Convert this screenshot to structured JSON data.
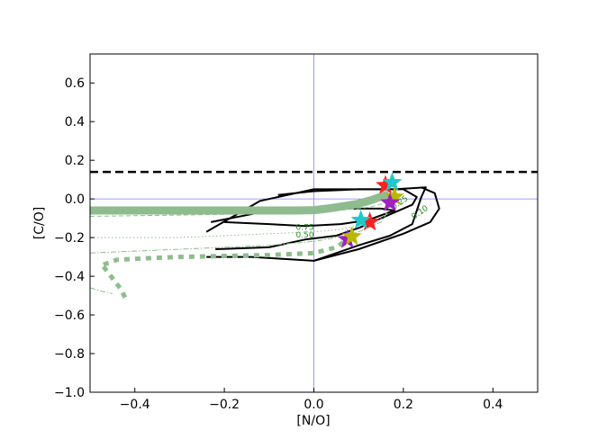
{
  "chart_data": {
    "type": "line",
    "xlabel": "[N/O]",
    "ylabel": "[C/O]",
    "xlim": [
      -0.5,
      0.5
    ],
    "ylim": [
      -1.0,
      0.75
    ],
    "x_ticks": [
      -0.4,
      -0.2,
      0.0,
      0.2,
      0.4
    ],
    "y_ticks": [
      -1.0,
      -0.8,
      -0.6,
      -0.4,
      -0.2,
      0.0,
      0.2,
      0.4,
      0.6
    ],
    "x_tick_labels": [
      "−0.4",
      "−0.2",
      "0.0",
      "0.2",
      "0.4"
    ],
    "y_tick_labels": [
      "−1.0",
      "−0.8",
      "−0.6",
      "−0.4",
      "−0.2",
      "0.0",
      "0.2",
      "0.4",
      "0.6"
    ],
    "grid": false,
    "reference_lines": {
      "vertical_x": 0.0,
      "horizontal_y": 0.0,
      "color": "#8080ff"
    },
    "solar_line": {
      "y": 0.14,
      "style": "dashed",
      "color": "#000000"
    },
    "contours": [
      {
        "color": "#000000",
        "points": [
          [
            -0.23,
            -0.12
          ],
          [
            -0.12,
            -0.07
          ],
          [
            -0.03,
            -0.06
          ],
          [
            0.05,
            -0.05
          ],
          [
            0.15,
            -0.05
          ],
          [
            0.18,
            -0.06
          ],
          [
            0.12,
            -0.11
          ],
          [
            0.06,
            -0.13
          ],
          [
            -0.02,
            -0.14
          ],
          [
            -0.1,
            -0.13
          ],
          [
            -0.2,
            -0.12
          ]
        ]
      },
      {
        "color": "#000000",
        "points": [
          [
            -0.24,
            -0.17
          ],
          [
            -0.12,
            -0.01
          ],
          [
            0.0,
            0.05
          ],
          [
            0.1,
            0.05
          ],
          [
            0.2,
            0.05
          ],
          [
            0.23,
            0.01
          ],
          [
            0.22,
            -0.03
          ],
          [
            0.1,
            -0.15
          ],
          [
            0.05,
            -0.19
          ],
          [
            -0.02,
            -0.21
          ],
          [
            -0.1,
            -0.25
          ],
          [
            -0.22,
            -0.26
          ]
        ]
      },
      {
        "color": "#000000",
        "points": [
          [
            -0.24,
            -0.3
          ],
          [
            -0.14,
            -0.3
          ],
          [
            0.0,
            -0.32
          ],
          [
            0.05,
            -0.28
          ],
          [
            0.1,
            -0.24
          ],
          [
            0.17,
            -0.19
          ],
          [
            0.22,
            -0.13
          ],
          [
            0.24,
            0.01
          ],
          [
            0.25,
            0.06
          ],
          [
            0.18,
            0.05
          ],
          [
            0.1,
            0.05
          ],
          [
            0.0,
            0.04
          ],
          [
            -0.08,
            0.02
          ]
        ]
      },
      {
        "color": "#000000",
        "points": [
          [
            0.0,
            -0.32
          ],
          [
            0.1,
            -0.26
          ],
          [
            0.2,
            -0.18
          ],
          [
            0.26,
            -0.12
          ],
          [
            0.28,
            -0.05
          ],
          [
            0.27,
            0.03
          ],
          [
            0.24,
            0.06
          ]
        ]
      }
    ],
    "contour_labels": [
      {
        "text": "0.75",
        "x": -0.02,
        "y": -0.16,
        "color": "#2a8a2a"
      },
      {
        "text": "0.50",
        "x": -0.02,
        "y": -0.2,
        "color": "#2a8a2a"
      },
      {
        "text": "0.25",
        "x": 0.195,
        "y": -0.03,
        "color": "#2a8a2a"
      },
      {
        "text": "0.10",
        "x": 0.24,
        "y": -0.08,
        "color": "#2a8a2a"
      }
    ],
    "series": [
      {
        "style": "thick-solid",
        "color": "#8fbc8f",
        "x": [
          -0.5,
          -0.4,
          -0.3,
          -0.2,
          -0.1,
          -0.04,
          0.0,
          0.03,
          0.06,
          0.1,
          0.13,
          0.16
        ],
        "y": [
          -0.06,
          -0.06,
          -0.06,
          -0.06,
          -0.06,
          -0.06,
          -0.058,
          -0.05,
          -0.04,
          -0.025,
          -0.005,
          0.02
        ]
      },
      {
        "style": "thin-dashed",
        "color": "#8fbc8f",
        "x": [
          -0.5,
          -0.35,
          -0.2,
          -0.1,
          0.0,
          0.05,
          0.1,
          0.13,
          0.16
        ],
        "y": [
          -0.09,
          -0.085,
          -0.08,
          -0.075,
          -0.07,
          -0.06,
          -0.05,
          -0.04,
          -0.02
        ]
      },
      {
        "style": "thin-dotted",
        "color": "#8fbc8f",
        "x": [
          -0.5,
          -0.3,
          -0.2,
          -0.1,
          0.0,
          0.05,
          0.1,
          0.15,
          0.17
        ],
        "y": [
          -0.2,
          -0.2,
          -0.19,
          -0.18,
          -0.17,
          -0.16,
          -0.14,
          -0.1,
          -0.05
        ]
      },
      {
        "style": "thin-dashdot",
        "color": "#8fbc8f",
        "x": [
          -0.5,
          -0.3,
          -0.2,
          -0.1,
          0.0,
          0.05,
          0.1,
          0.15,
          0.17
        ],
        "y": [
          -0.28,
          -0.26,
          -0.25,
          -0.24,
          -0.22,
          -0.2,
          -0.17,
          -0.12,
          -0.05
        ]
      },
      {
        "style": "thick-dotted",
        "color": "#8fbc8f",
        "x": [
          -0.47,
          -0.44,
          -0.4,
          -0.3,
          -0.2,
          -0.1,
          0.0,
          0.05,
          0.08
        ],
        "y": [
          -0.34,
          -0.315,
          -0.31,
          -0.3,
          -0.295,
          -0.29,
          -0.28,
          -0.25,
          -0.2
        ]
      },
      {
        "style": "thick-dotted",
        "color": "#8fbc8f",
        "x": [
          -0.47,
          -0.45,
          -0.43,
          -0.42
        ],
        "y": [
          -0.35,
          -0.41,
          -0.47,
          -0.52
        ]
      },
      {
        "style": "thin-dashdot",
        "color": "#8fbc8f",
        "x": [
          -0.5,
          -0.47,
          -0.45
        ],
        "y": [
          -0.46,
          -0.48,
          -0.49
        ]
      }
    ],
    "markers": [
      {
        "shape": "star",
        "color": "#ff2020",
        "x": 0.16,
        "y": 0.07
      },
      {
        "shape": "star",
        "color": "#20c8c8",
        "x": 0.175,
        "y": 0.085
      },
      {
        "shape": "star",
        "color": "#b8b800",
        "x": 0.18,
        "y": 0.01
      },
      {
        "shape": "star",
        "color": "#a020c0",
        "x": 0.17,
        "y": -0.02
      },
      {
        "shape": "star",
        "color": "#ff2020",
        "x": 0.125,
        "y": -0.12
      },
      {
        "shape": "star",
        "color": "#20c8c8",
        "x": 0.105,
        "y": -0.11
      },
      {
        "shape": "star",
        "color": "#a020c0",
        "x": 0.075,
        "y": -0.21
      },
      {
        "shape": "star",
        "color": "#b8b800",
        "x": 0.085,
        "y": -0.195
      }
    ]
  }
}
